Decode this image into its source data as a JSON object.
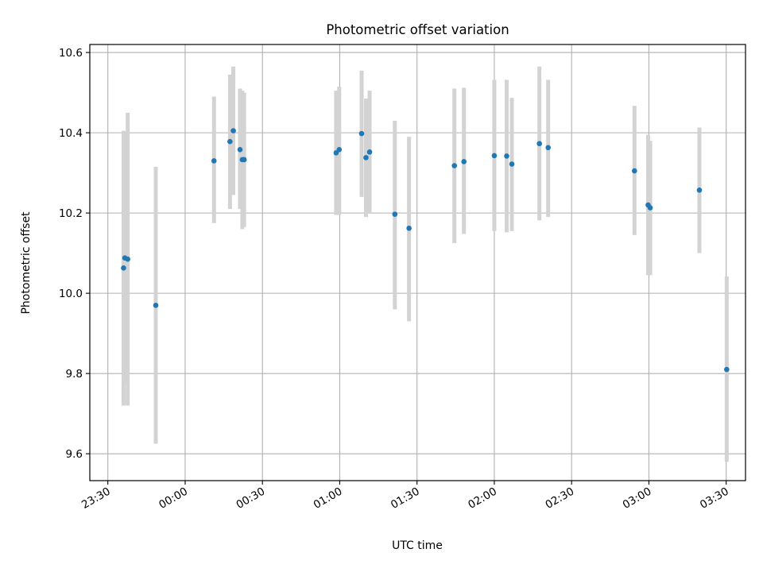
{
  "chart_data": {
    "type": "scatter",
    "title": "Photometric offset variation",
    "xlabel": "UTC time",
    "ylabel": "Photometric offset",
    "grid": true,
    "legend": "none",
    "x_unit": "minutes after 23:00 UTC",
    "xlim": [
      23.0,
      277.5
    ],
    "ylim": [
      9.533,
      10.62
    ],
    "x_ticks": [
      {
        "value": 30,
        "label": "23:30"
      },
      {
        "value": 60,
        "label": "00:00"
      },
      {
        "value": 90,
        "label": "00:30"
      },
      {
        "value": 120,
        "label": "01:00"
      },
      {
        "value": 150,
        "label": "01:30"
      },
      {
        "value": 180,
        "label": "02:00"
      },
      {
        "value": 210,
        "label": "02:30"
      },
      {
        "value": 240,
        "label": "03:00"
      },
      {
        "value": 270,
        "label": "03:30"
      }
    ],
    "y_ticks": [
      {
        "value": 9.6,
        "label": "9.6"
      },
      {
        "value": 9.8,
        "label": "9.8"
      },
      {
        "value": 10.0,
        "label": "10.0"
      },
      {
        "value": 10.2,
        "label": "10.2"
      },
      {
        "value": 10.4,
        "label": "10.4"
      },
      {
        "value": 10.6,
        "label": "10.6"
      }
    ],
    "colors": {
      "point": "#1f77b4",
      "errorbar": "#d3d3d3",
      "grid": "#b0b0b0"
    },
    "series": [
      {
        "points": [
          {
            "time": "23:36",
            "x": 36.1,
            "y": 10.063,
            "err_low": 9.72,
            "err_high": 10.405
          },
          {
            "time": "23:36",
            "x": 36.6,
            "y": 10.088,
            "err_low": 9.775,
            "err_high": 10.4
          },
          {
            "time": "23:37",
            "x": 37.7,
            "y": 10.085,
            "err_low": 9.72,
            "err_high": 10.45
          },
          {
            "time": "23:48",
            "x": 48.6,
            "y": 9.97,
            "err_low": 9.625,
            "err_high": 10.315
          },
          {
            "time": "00:11",
            "x": 71.2,
            "y": 10.33,
            "err_low": 10.175,
            "err_high": 10.49
          },
          {
            "time": "00:17",
            "x": 77.4,
            "y": 10.378,
            "err_low": 10.21,
            "err_high": 10.545
          },
          {
            "time": "00:18",
            "x": 78.7,
            "y": 10.405,
            "err_low": 10.245,
            "err_high": 10.565
          },
          {
            "time": "00:21",
            "x": 81.3,
            "y": 10.358,
            "err_low": 10.21,
            "err_high": 10.51
          },
          {
            "time": "00:22",
            "x": 82.2,
            "y": 10.333,
            "err_low": 10.16,
            "err_high": 10.505
          },
          {
            "time": "00:23",
            "x": 82.9,
            "y": 10.333,
            "err_low": 10.165,
            "err_high": 10.5
          },
          {
            "time": "00:58",
            "x": 118.6,
            "y": 10.35,
            "err_low": 10.195,
            "err_high": 10.505
          },
          {
            "time": "01:00",
            "x": 119.8,
            "y": 10.358,
            "err_low": 10.195,
            "err_high": 10.515
          },
          {
            "time": "01:08",
            "x": 128.5,
            "y": 10.398,
            "err_low": 10.24,
            "err_high": 10.555
          },
          {
            "time": "01:10",
            "x": 130.2,
            "y": 10.338,
            "err_low": 10.19,
            "err_high": 10.485
          },
          {
            "time": "01:11",
            "x": 131.6,
            "y": 10.352,
            "err_low": 10.2,
            "err_high": 10.505
          },
          {
            "time": "01:21",
            "x": 141.4,
            "y": 10.197,
            "err_low": 9.96,
            "err_high": 10.43
          },
          {
            "time": "01:26",
            "x": 146.9,
            "y": 10.162,
            "err_low": 9.93,
            "err_high": 10.39
          },
          {
            "time": "01:44",
            "x": 164.5,
            "y": 10.318,
            "err_low": 10.125,
            "err_high": 10.51
          },
          {
            "time": "01:48",
            "x": 168.2,
            "y": 10.328,
            "err_low": 10.148,
            "err_high": 10.512
          },
          {
            "time": "02:00",
            "x": 180.0,
            "y": 10.343,
            "err_low": 10.155,
            "err_high": 10.532
          },
          {
            "time": "02:04",
            "x": 184.8,
            "y": 10.342,
            "err_low": 10.152,
            "err_high": 10.532
          },
          {
            "time": "02:06",
            "x": 186.8,
            "y": 10.322,
            "err_low": 10.155,
            "err_high": 10.487
          },
          {
            "time": "02:17",
            "x": 197.5,
            "y": 10.373,
            "err_low": 10.182,
            "err_high": 10.565
          },
          {
            "time": "02:20",
            "x": 200.9,
            "y": 10.363,
            "err_low": 10.19,
            "err_high": 10.532
          },
          {
            "time": "02:54",
            "x": 234.4,
            "y": 10.305,
            "err_low": 10.145,
            "err_high": 10.467
          },
          {
            "time": "03:00",
            "x": 239.7,
            "y": 10.22,
            "err_low": 10.045,
            "err_high": 10.395
          },
          {
            "time": "03:00",
            "x": 240.5,
            "y": 10.213,
            "err_low": 10.045,
            "err_high": 10.38
          },
          {
            "time": "03:19",
            "x": 259.6,
            "y": 10.257,
            "err_low": 10.1,
            "err_high": 10.413
          },
          {
            "time": "03:30",
            "x": 270.2,
            "y": 9.81,
            "err_low": 9.58,
            "err_high": 10.042
          }
        ]
      }
    ]
  }
}
